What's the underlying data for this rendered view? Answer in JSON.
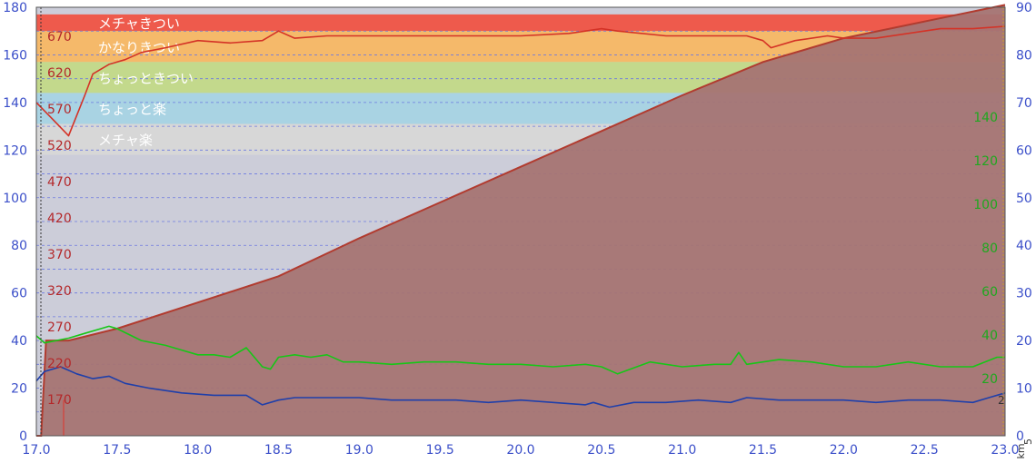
{
  "chart_data": {
    "type": "area",
    "x": {
      "min": 17.0,
      "max": 23.0,
      "ticks": [
        "17.0",
        "17.5",
        "18.0",
        "18.5",
        "19.0",
        "19.5",
        "20.0",
        "20.5",
        "21.0",
        "21.5",
        "22.0",
        "22.5",
        "23.0"
      ],
      "unit_label": "km"
    },
    "y_left_blue": {
      "min": 0,
      "max": 180,
      "ticks": [
        "0",
        "20",
        "40",
        "60",
        "80",
        "100",
        "120",
        "140",
        "160",
        "180"
      ]
    },
    "y_left_red": {
      "ticks": [
        "170",
        "220",
        "270",
        "320",
        "370",
        "420",
        "470",
        "520",
        "570",
        "620",
        "670"
      ]
    },
    "y_right_green": {
      "ticks": [
        "20",
        "40",
        "60",
        "80",
        "100",
        "120",
        "140"
      ]
    },
    "y_right_blue": {
      "min": 0,
      "max": 90,
      "ticks": [
        "0",
        "10",
        "20",
        "30",
        "40",
        "50",
        "60",
        "70",
        "80",
        "90"
      ],
      "unit_label": "5"
    },
    "edge_mark": "2",
    "zones": [
      {
        "label": "メチャきつい",
        "from": 170,
        "to": 177,
        "color": "#ee5a4c"
      },
      {
        "label": "かなりきつい",
        "from": 157,
        "to": 170,
        "color": "#f5b96a"
      },
      {
        "label": "ちょっときつい",
        "from": 144,
        "to": 157,
        "color": "#c3d98c"
      },
      {
        "label": "ちょっと楽",
        "from": 131,
        "to": 144,
        "color": "#a9d3e3"
      },
      {
        "label": "メチャ楽",
        "from": 118,
        "to": 131,
        "color": "#d7d7d7"
      }
    ],
    "series": [
      {
        "name": "",
        "color": "#b13b2f",
        "fill": "#a57473",
        "x": [
          17.0,
          17.03,
          17.06,
          17.1,
          17.2,
          17.5,
          18.0,
          18.5,
          19.0,
          19.5,
          20.0,
          20.5,
          21.0,
          21.5,
          22.0,
          22.5,
          23.0
        ],
        "y": [
          0,
          0,
          40,
          40,
          40,
          45,
          56,
          67,
          83,
          98,
          113,
          128,
          143,
          157,
          167,
          174,
          181
        ]
      },
      {
        "name": "",
        "color": "#d43226",
        "x": [
          17.0,
          17.1,
          17.2,
          17.3,
          17.35,
          17.45,
          17.55,
          17.65,
          17.8,
          18.0,
          18.2,
          18.4,
          18.5,
          18.6,
          18.8,
          19.0,
          19.3,
          19.6,
          20.0,
          20.3,
          20.5,
          20.6,
          20.9,
          21.0,
          21.3,
          21.4,
          21.5,
          21.55,
          21.7,
          21.9,
          22.0,
          22.2,
          22.5,
          22.6,
          22.8,
          23.0
        ],
        "y": [
          140,
          133,
          126,
          143,
          152,
          156,
          158,
          161,
          163,
          166,
          165,
          166,
          170,
          167,
          168,
          168,
          168,
          168,
          168,
          169,
          171,
          170,
          168,
          168,
          168,
          168,
          166,
          163,
          166,
          168,
          167,
          167,
          170,
          171,
          171,
          172
        ]
      },
      {
        "name": "",
        "color": "#17c617",
        "x": [
          17.0,
          17.05,
          17.2,
          17.3,
          17.4,
          17.45,
          17.5,
          17.65,
          17.8,
          17.9,
          18.0,
          18.1,
          18.2,
          18.3,
          18.35,
          18.4,
          18.45,
          18.5,
          18.6,
          18.7,
          18.8,
          18.9,
          19.0,
          19.2,
          19.4,
          19.6,
          19.8,
          20.0,
          20.2,
          20.4,
          20.5,
          20.6,
          20.8,
          21.0,
          21.2,
          21.3,
          21.35,
          21.4,
          21.6,
          21.8,
          22.0,
          22.2,
          22.4,
          22.6,
          22.8,
          22.95,
          23.0
        ],
        "y": [
          42,
          39,
          41,
          43,
          45,
          46,
          45,
          40,
          38,
          36,
          34,
          34,
          33,
          37,
          33,
          29,
          28,
          33,
          34,
          33,
          34,
          31,
          31,
          30,
          31,
          31,
          30,
          30,
          29,
          30,
          29,
          26,
          31,
          29,
          30,
          30,
          35,
          30,
          32,
          31,
          29,
          29,
          31,
          29,
          29,
          33,
          33
        ]
      },
      {
        "name": "",
        "color": "#1f3faa",
        "x": [
          17.0,
          17.05,
          17.1,
          17.15,
          17.25,
          17.35,
          17.45,
          17.55,
          17.7,
          17.9,
          18.1,
          18.3,
          18.4,
          18.5,
          18.6,
          18.8,
          19.0,
          19.2,
          19.4,
          19.6,
          19.8,
          20.0,
          20.2,
          20.4,
          20.45,
          20.55,
          20.7,
          20.9,
          21.1,
          21.3,
          21.4,
          21.6,
          21.8,
          22.0,
          22.2,
          22.4,
          22.6,
          22.8,
          22.9,
          23.0
        ],
        "y": [
          23,
          27,
          28,
          29,
          26,
          24,
          25,
          22,
          20,
          18,
          17,
          17,
          13,
          15,
          16,
          16,
          16,
          15,
          15,
          15,
          14,
          15,
          14,
          13,
          14,
          12,
          14,
          14,
          15,
          14,
          16,
          15,
          15,
          15,
          14,
          15,
          15,
          14,
          16,
          18
        ]
      }
    ]
  }
}
